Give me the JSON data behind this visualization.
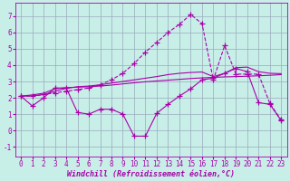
{
  "xlabel": "Windchill (Refroidissement éolien,°C)",
  "xlim": [
    -0.5,
    23.5
  ],
  "ylim": [
    -1.6,
    7.8
  ],
  "bg_color": "#c8eee8",
  "line_color": "#aa00aa",
  "grid_color": "#99aabb",
  "series": [
    {
      "y": [
        2.1,
        1.5,
        2.0,
        2.6,
        2.6,
        1.1,
        1.0,
        1.3,
        1.3,
        1.0,
        -0.35,
        -0.35,
        1.05,
        1.6,
        2.1,
        2.55,
        3.1,
        3.2,
        3.5,
        3.8,
        3.6,
        1.7,
        1.6,
        0.6
      ],
      "linestyle": "-",
      "marker": "+",
      "linewidth": 0.8,
      "markersize": 4
    },
    {
      "y": [
        2.1,
        2.18,
        2.28,
        2.55,
        2.62,
        2.65,
        2.68,
        2.72,
        2.78,
        2.85,
        2.92,
        2.98,
        3.03,
        3.08,
        3.13,
        3.18,
        3.22,
        3.25,
        3.28,
        3.3,
        3.32,
        3.35,
        3.38,
        3.42
      ],
      "linestyle": "-",
      "marker": null,
      "linewidth": 0.8,
      "markersize": 0
    },
    {
      "y": [
        2.1,
        2.12,
        2.2,
        2.4,
        2.58,
        2.68,
        2.72,
        2.8,
        2.9,
        3.0,
        3.1,
        3.2,
        3.3,
        3.42,
        3.5,
        3.55,
        3.58,
        3.3,
        3.5,
        3.85,
        3.88,
        3.6,
        3.5,
        3.48
      ],
      "linestyle": "-",
      "marker": null,
      "linewidth": 0.8,
      "markersize": 0
    },
    {
      "y": [
        2.1,
        2.1,
        2.2,
        2.3,
        2.4,
        2.5,
        2.6,
        2.8,
        3.1,
        3.5,
        4.1,
        4.8,
        5.4,
        6.0,
        6.5,
        7.1,
        6.55,
        3.1,
        5.2,
        3.45,
        3.45,
        3.45,
        1.65,
        0.65
      ],
      "linestyle": "--",
      "marker": "+",
      "linewidth": 0.8,
      "markersize": 4
    }
  ],
  "yticks": [
    -1,
    0,
    1,
    2,
    3,
    4,
    5,
    6,
    7
  ],
  "xticks": [
    0,
    1,
    2,
    3,
    4,
    5,
    6,
    7,
    8,
    9,
    10,
    11,
    12,
    13,
    14,
    15,
    16,
    17,
    18,
    19,
    20,
    21,
    22,
    23
  ],
  "tick_fontsize": 5.5,
  "xlabel_fontsize": 6.0
}
